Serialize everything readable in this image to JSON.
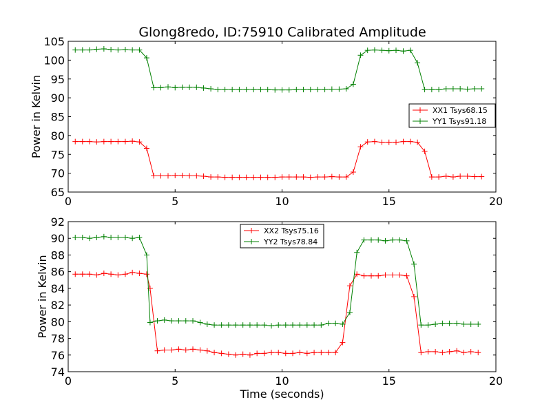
{
  "figure": {
    "title": "Glong8redo, ID:75910 Calibrated Amplitude"
  },
  "chart_data": [
    {
      "type": "line",
      "ylabel": "Power in Kelvin",
      "xlabel": "",
      "xlim": [
        0,
        20
      ],
      "ylim": [
        65,
        105
      ],
      "xticks": [
        0,
        5,
        10,
        15,
        20
      ],
      "yticks": [
        65,
        70,
        75,
        80,
        85,
        90,
        95,
        100,
        105
      ],
      "legend_position": "center-right",
      "grid": false,
      "x": [
        0.33,
        0.67,
        1.0,
        1.33,
        1.67,
        2.0,
        2.33,
        2.67,
        3.0,
        3.33,
        3.67,
        4.0,
        4.33,
        4.67,
        5.0,
        5.33,
        5.67,
        6.0,
        6.33,
        6.67,
        7.0,
        7.33,
        7.67,
        8.0,
        8.33,
        8.67,
        9.0,
        9.33,
        9.67,
        10.0,
        10.33,
        10.67,
        11.0,
        11.33,
        11.67,
        12.0,
        12.33,
        12.67,
        13.0,
        13.33,
        13.67,
        14.0,
        14.33,
        14.67,
        15.0,
        15.33,
        15.67,
        16.0,
        16.33,
        16.67,
        17.0,
        17.33,
        17.67,
        18.0,
        18.33,
        18.67,
        19.0,
        19.33
      ],
      "series": [
        {
          "name": "XX1 Tsys68.15",
          "color": "#ff0000",
          "values": [
            78.4,
            78.4,
            78.4,
            78.3,
            78.4,
            78.4,
            78.4,
            78.4,
            78.5,
            78.3,
            76.6,
            69.3,
            69.3,
            69.3,
            69.4,
            69.4,
            69.3,
            69.3,
            69.2,
            69.0,
            69.0,
            68.9,
            68.9,
            68.9,
            68.9,
            68.9,
            68.9,
            68.9,
            68.9,
            69.0,
            69.0,
            69.0,
            69.0,
            68.9,
            69.0,
            69.0,
            69.1,
            69.0,
            69.0,
            70.3,
            77.0,
            78.3,
            78.4,
            78.2,
            78.2,
            78.2,
            78.4,
            78.4,
            78.2,
            75.8,
            69.0,
            69.0,
            69.2,
            69.0,
            69.2,
            69.2,
            69.1,
            69.1
          ]
        },
        {
          "name": "YY1 Tsys91.18",
          "color": "#008000",
          "values": [
            102.7,
            102.7,
            102.7,
            102.9,
            103.0,
            102.8,
            102.7,
            102.8,
            102.7,
            102.7,
            100.6,
            92.7,
            92.7,
            92.9,
            92.7,
            92.8,
            92.8,
            92.8,
            92.6,
            92.4,
            92.2,
            92.2,
            92.2,
            92.2,
            92.2,
            92.2,
            92.2,
            92.2,
            92.1,
            92.1,
            92.1,
            92.2,
            92.2,
            92.2,
            92.2,
            92.2,
            92.3,
            92.3,
            92.4,
            93.6,
            101.3,
            102.6,
            102.7,
            102.6,
            102.5,
            102.6,
            102.4,
            102.6,
            99.3,
            92.2,
            92.2,
            92.2,
            92.4,
            92.4,
            92.4,
            92.3,
            92.4,
            92.4
          ]
        }
      ]
    },
    {
      "type": "line",
      "ylabel": "Power in Kelvin",
      "xlabel": "Time (seconds)",
      "xlim": [
        0,
        20
      ],
      "ylim": [
        74,
        92
      ],
      "xticks": [
        0,
        5,
        10,
        15,
        20
      ],
      "yticks": [
        74,
        76,
        78,
        80,
        82,
        84,
        86,
        88,
        90,
        92
      ],
      "legend_position": "upper-center",
      "grid": false,
      "x": [
        0.33,
        0.67,
        1.0,
        1.33,
        1.67,
        2.0,
        2.33,
        2.67,
        3.0,
        3.33,
        3.67,
        4.0,
        4.33,
        4.67,
        5.0,
        5.33,
        5.67,
        6.0,
        6.33,
        6.67,
        7.0,
        7.33,
        7.67,
        8.0,
        8.33,
        8.67,
        9.0,
        9.33,
        9.67,
        10.0,
        10.33,
        10.67,
        11.0,
        11.33,
        11.67,
        12.0,
        12.33,
        12.67,
        13.0,
        13.33,
        13.67,
        14.0,
        14.33,
        14.67,
        15.0,
        15.33,
        15.67,
        16.0,
        16.33,
        16.67,
        17.0,
        17.33,
        17.67,
        18.0,
        18.33,
        18.67,
        19.0,
        19.33
      ],
      "series": [
        {
          "name": "XX2 Tsys75.16",
          "color": "#ff0000",
          "values": [
            85.7,
            85.7,
            85.7,
            85.6,
            85.8,
            85.7,
            85.6,
            85.7,
            85.9,
            85.8,
            85.7,
            84.0,
            76.5,
            76.6,
            76.6,
            76.7,
            76.6,
            76.7,
            76.6,
            76.5,
            76.3,
            76.2,
            76.1,
            76.0,
            76.1,
            76.0,
            76.2,
            76.2,
            76.3,
            76.3,
            76.2,
            76.2,
            76.3,
            76.2,
            76.3,
            76.3,
            76.3,
            76.3,
            77.5,
            84.3,
            85.7,
            85.5,
            85.5,
            85.5,
            85.6,
            85.6,
            85.6,
            85.5,
            83.0,
            76.3,
            76.4,
            76.4,
            76.3,
            76.4,
            76.5,
            76.3,
            76.4,
            76.3
          ],
          "x": [
            0.33,
            0.67,
            1.0,
            1.33,
            1.67,
            2.0,
            2.33,
            2.67,
            3.0,
            3.33,
            3.67,
            3.83,
            4.17,
            4.5,
            4.83,
            5.17,
            5.5,
            5.83,
            6.17,
            6.5,
            6.83,
            7.17,
            7.5,
            7.83,
            8.17,
            8.5,
            8.83,
            9.17,
            9.5,
            9.83,
            10.17,
            10.5,
            10.83,
            11.17,
            11.5,
            11.83,
            12.17,
            12.5,
            12.83,
            13.17,
            13.5,
            13.83,
            14.17,
            14.5,
            14.83,
            15.17,
            15.5,
            15.83,
            16.17,
            16.5,
            16.83,
            17.17,
            17.5,
            17.83,
            18.17,
            18.5,
            18.83,
            19.17
          ]
        },
        {
          "name": "YY2 Tsys78.84",
          "color": "#008000",
          "values": [
            90.1,
            90.1,
            90.0,
            90.1,
            90.2,
            90.1,
            90.1,
            90.1,
            90.0,
            90.1,
            88.0,
            79.9,
            80.1,
            80.2,
            80.1,
            80.1,
            80.1,
            80.1,
            79.9,
            79.7,
            79.6,
            79.6,
            79.6,
            79.6,
            79.6,
            79.6,
            79.6,
            79.6,
            79.5,
            79.6,
            79.6,
            79.6,
            79.6,
            79.6,
            79.6,
            79.6,
            79.8,
            79.8,
            79.7,
            81.1,
            88.3,
            89.8,
            89.8,
            89.8,
            89.7,
            89.8,
            89.8,
            89.7,
            86.9,
            79.6,
            79.6,
            79.7,
            79.8,
            79.8,
            79.8,
            79.7,
            79.7,
            79.7
          ],
          "x": [
            0.33,
            0.67,
            1.0,
            1.33,
            1.67,
            2.0,
            2.33,
            2.67,
            3.0,
            3.33,
            3.67,
            3.83,
            4.17,
            4.5,
            4.83,
            5.17,
            5.5,
            5.83,
            6.17,
            6.5,
            6.83,
            7.17,
            7.5,
            7.83,
            8.17,
            8.5,
            8.83,
            9.17,
            9.5,
            9.83,
            10.17,
            10.5,
            10.83,
            11.17,
            11.5,
            11.83,
            12.17,
            12.5,
            12.83,
            13.17,
            13.5,
            13.83,
            14.17,
            14.5,
            14.83,
            15.17,
            15.5,
            15.83,
            16.17,
            16.5,
            16.83,
            17.17,
            17.5,
            17.83,
            18.17,
            18.5,
            18.83,
            19.17
          ]
        }
      ]
    }
  ]
}
